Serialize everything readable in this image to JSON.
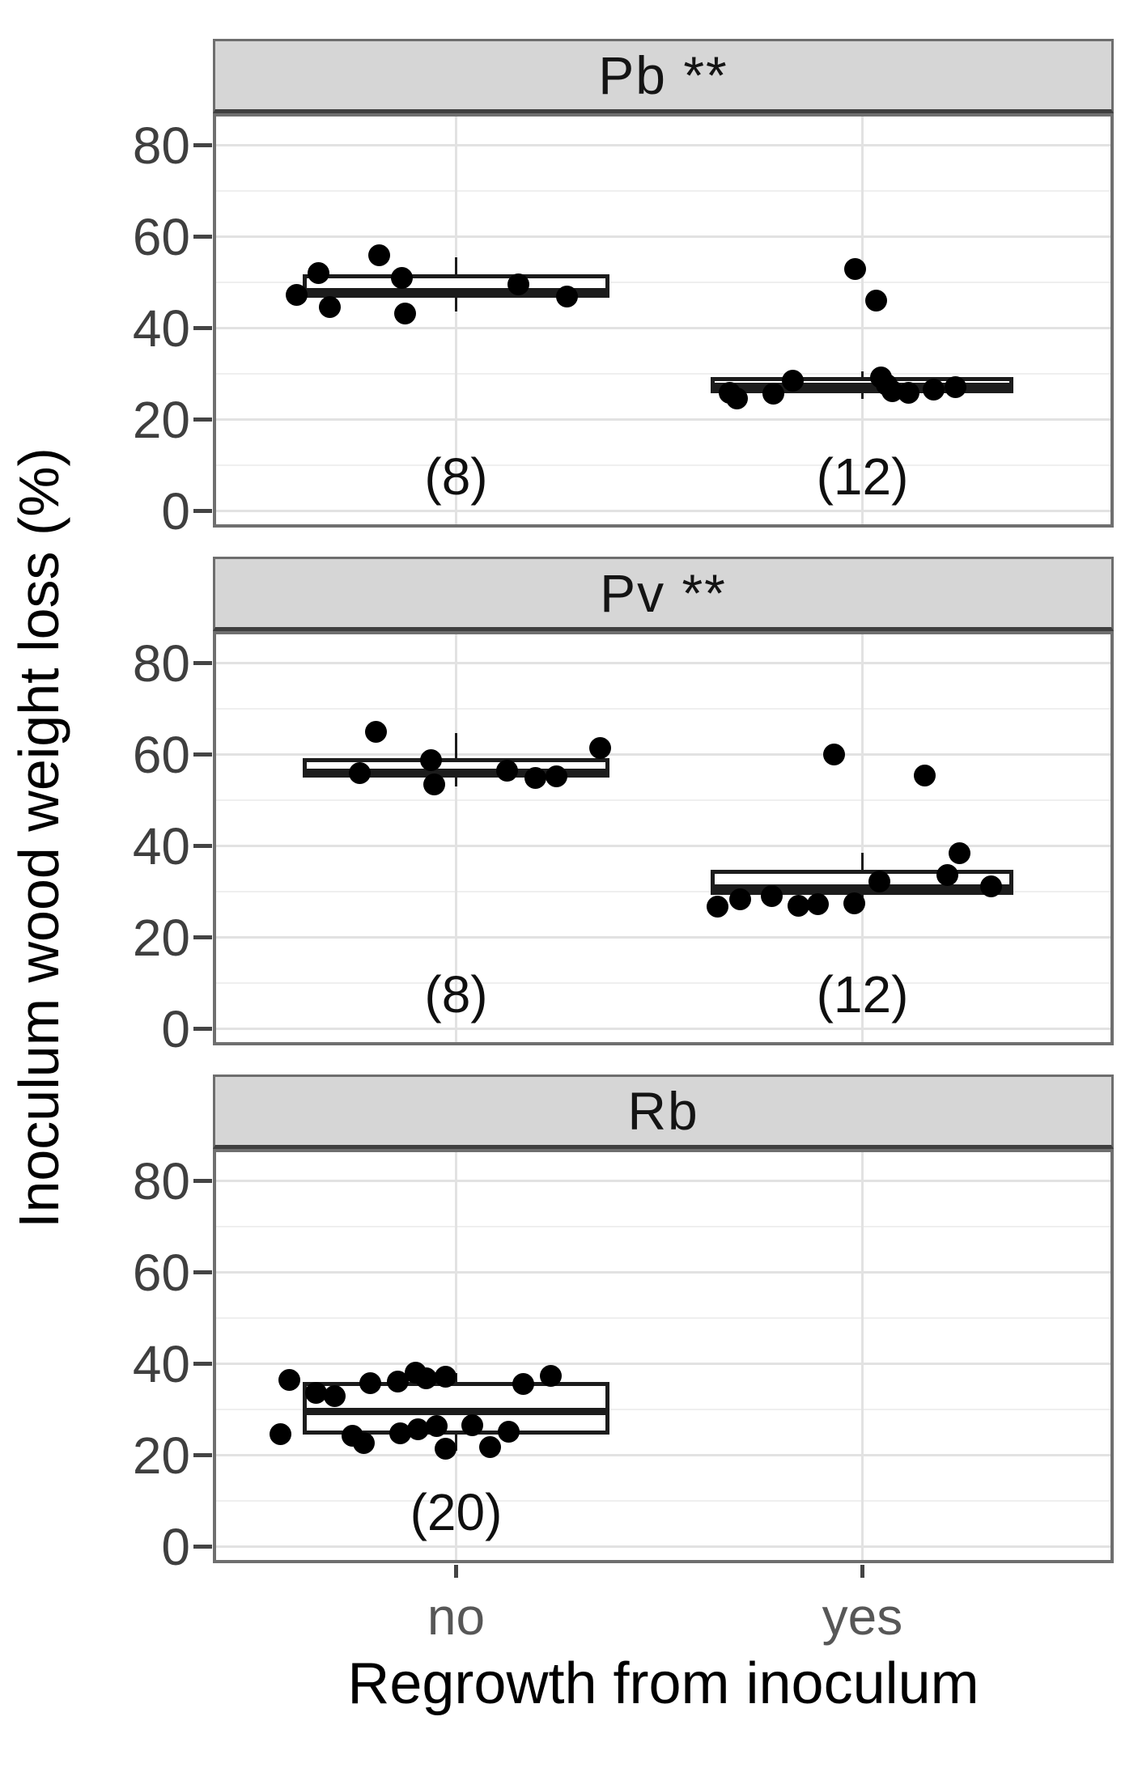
{
  "chart_data": {
    "type": "boxplot",
    "description": "Faceted boxplots with jittered points of inoculum wood weight loss by regrowth from inoculum, for three fungal isolates",
    "y": {
      "label": "Inoculum wood weight loss (%)",
      "ticks": [
        0,
        20,
        40,
        60,
        80
      ],
      "minor_ticks": [
        10,
        30,
        50,
        70
      ],
      "range": [
        -3.6,
        87
      ],
      "grid": true
    },
    "x": {
      "label": "Regrowth from inoculum",
      "categories": [
        "no",
        "yes"
      ],
      "category_centers": [
        0.27,
        0.721
      ]
    },
    "facets": [
      {
        "label": "Pb **",
        "significance": "**",
        "groups": [
          {
            "category": "no",
            "n": 8,
            "count_label": "(8)",
            "box": {
              "whisker_low": 43.6,
              "q1": 46.6,
              "median": 48.0,
              "q3": 51.8,
              "whisker_high": 55.5,
              "x_center": 0.27,
              "x_left": 0.1,
              "x_right": 0.44
            },
            "points": [
              {
                "x": 0.093,
                "v": 47.3
              },
              {
                "x": 0.117,
                "v": 52.0
              },
              {
                "x": 0.13,
                "v": 44.6
              },
              {
                "x": 0.185,
                "v": 56.0
              },
              {
                "x": 0.21,
                "v": 51.0
              },
              {
                "x": 0.213,
                "v": 43.2
              },
              {
                "x": 0.339,
                "v": 49.5
              },
              {
                "x": 0.393,
                "v": 47.0
              }
            ]
          },
          {
            "category": "yes",
            "n": 12,
            "count_label": "(12)",
            "box": {
              "whisker_low": 24.6,
              "q1": 25.8,
              "median": 27.2,
              "q3": 29.3,
              "whisker_high": 30.5,
              "x_center": 0.721,
              "x_left": 0.553,
              "x_right": 0.889
            },
            "points": [
              {
                "x": 0.574,
                "v": 25.9
              },
              {
                "x": 0.582,
                "v": 24.7
              },
              {
                "x": 0.622,
                "v": 25.6
              },
              {
                "x": 0.644,
                "v": 28.5
              },
              {
                "x": 0.713,
                "v": 53.0
              },
              {
                "x": 0.736,
                "v": 46.0
              },
              {
                "x": 0.742,
                "v": 29.2
              },
              {
                "x": 0.748,
                "v": 27.6
              },
              {
                "x": 0.754,
                "v": 26.2
              },
              {
                "x": 0.772,
                "v": 25.9
              },
              {
                "x": 0.8,
                "v": 26.6
              },
              {
                "x": 0.824,
                "v": 27.1
              }
            ]
          }
        ]
      },
      {
        "label": "Pv **",
        "significance": "**",
        "groups": [
          {
            "category": "no",
            "n": 8,
            "count_label": "(8)",
            "box": {
              "whisker_low": 53.0,
              "q1": 55.0,
              "median": 56.2,
              "q3": 59.3,
              "whisker_high": 64.7,
              "x_center": 0.27,
              "x_left": 0.1,
              "x_right": 0.44
            },
            "points": [
              {
                "x": 0.163,
                "v": 55.9
              },
              {
                "x": 0.181,
                "v": 65.0
              },
              {
                "x": 0.242,
                "v": 58.8
              },
              {
                "x": 0.246,
                "v": 53.5
              },
              {
                "x": 0.327,
                "v": 56.4
              },
              {
                "x": 0.358,
                "v": 54.8
              },
              {
                "x": 0.381,
                "v": 55.2
              },
              {
                "x": 0.43,
                "v": 61.5
              }
            ]
          },
          {
            "category": "yes",
            "n": 12,
            "count_label": "(12)",
            "box": {
              "whisker_low": 26.6,
              "q1": 29.3,
              "median": 30.8,
              "q3": 34.8,
              "whisker_high": 38.5,
              "x_center": 0.721,
              "x_left": 0.553,
              "x_right": 0.889
            },
            "points": [
              {
                "x": 0.56,
                "v": 26.7
              },
              {
                "x": 0.585,
                "v": 28.4
              },
              {
                "x": 0.62,
                "v": 29.0
              },
              {
                "x": 0.65,
                "v": 27.0
              },
              {
                "x": 0.672,
                "v": 27.3
              },
              {
                "x": 0.69,
                "v": 60.0
              },
              {
                "x": 0.712,
                "v": 27.5
              },
              {
                "x": 0.74,
                "v": 32.3
              },
              {
                "x": 0.79,
                "v": 55.5
              },
              {
                "x": 0.815,
                "v": 33.7
              },
              {
                "x": 0.829,
                "v": 38.5
              },
              {
                "x": 0.864,
                "v": 31.1
              }
            ]
          }
        ]
      },
      {
        "label": "Rb",
        "significance": "",
        "groups": [
          {
            "category": "no",
            "n": 20,
            "count_label": "(20)",
            "box": {
              "whisker_low": 21.0,
              "q1": 24.5,
              "median": 29.5,
              "q3": 36.0,
              "whisker_high": 38.0,
              "x_center": 0.27,
              "x_left": 0.1,
              "x_right": 0.44
            },
            "points": [
              {
                "x": 0.085,
                "v": 36.4
              },
              {
                "x": 0.115,
                "v": 33.6
              },
              {
                "x": 0.135,
                "v": 33.0
              },
              {
                "x": 0.175,
                "v": 35.8
              },
              {
                "x": 0.205,
                "v": 36.2
              },
              {
                "x": 0.225,
                "v": 38.0
              },
              {
                "x": 0.237,
                "v": 36.8
              },
              {
                "x": 0.258,
                "v": 37.2
              },
              {
                "x": 0.345,
                "v": 35.6
              },
              {
                "x": 0.375,
                "v": 37.4
              },
              {
                "x": 0.075,
                "v": 24.6
              },
              {
                "x": 0.155,
                "v": 24.2
              },
              {
                "x": 0.168,
                "v": 22.6
              },
              {
                "x": 0.208,
                "v": 24.8
              },
              {
                "x": 0.228,
                "v": 25.6
              },
              {
                "x": 0.248,
                "v": 26.4
              },
              {
                "x": 0.258,
                "v": 21.4
              },
              {
                "x": 0.288,
                "v": 26.6
              },
              {
                "x": 0.308,
                "v": 21.8
              },
              {
                "x": 0.328,
                "v": 25.2
              }
            ]
          }
        ]
      }
    ]
  },
  "style": {
    "strip_fill": "#d6d6d6",
    "strip_border": "#6e6e6e",
    "panel_border": "#6f6f6f",
    "grid_major": "#e2e2e2",
    "grid_minor": "#efefef",
    "box_stroke": "#1c1c1c",
    "point_color": "#000000",
    "tick_text": "#3f3f3f",
    "title_text": "#000000"
  }
}
